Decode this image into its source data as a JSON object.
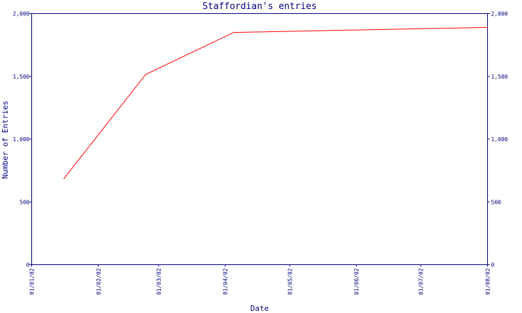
{
  "chart_data": {
    "type": "line",
    "title": "Staffordian's entries",
    "xlabel": "Date",
    "ylabel": "Number of Entries",
    "x_axis_type": "date",
    "x_ticks": [
      "01/01/02",
      "01/02/02",
      "01/03/02",
      "01/04/02",
      "01/05/02",
      "01/06/02",
      "01/07/02",
      "01/08/02"
    ],
    "x_tick_dates": [
      "2002-01-01",
      "2002-02-01",
      "2002-03-01",
      "2002-04-01",
      "2002-05-01",
      "2002-06-01",
      "2002-07-01",
      "2002-08-01"
    ],
    "y_ticks": [
      "0",
      "500",
      "1,000",
      "1,500",
      "2,000"
    ],
    "y_tick_values": [
      0,
      500,
      1000,
      1500,
      2000
    ],
    "ylim": [
      0,
      2000
    ],
    "xlim": [
      "2002-01-01",
      "2002-08-01"
    ],
    "y_axis_mirrored_right": true,
    "grid": false,
    "legend": "none",
    "series": [
      {
        "color": "#ff0000",
        "points": [
          {
            "x": "2002-01-16",
            "y": 685
          },
          {
            "x": "2002-02-23",
            "y": 1515
          },
          {
            "x": "2002-04-05",
            "y": 1850
          },
          {
            "x": "2002-08-01",
            "y": 1890
          }
        ]
      }
    ],
    "colors": {
      "axis": "#000080",
      "text": "#000080",
      "line": "#ff0000",
      "background": "#ffffff"
    }
  }
}
